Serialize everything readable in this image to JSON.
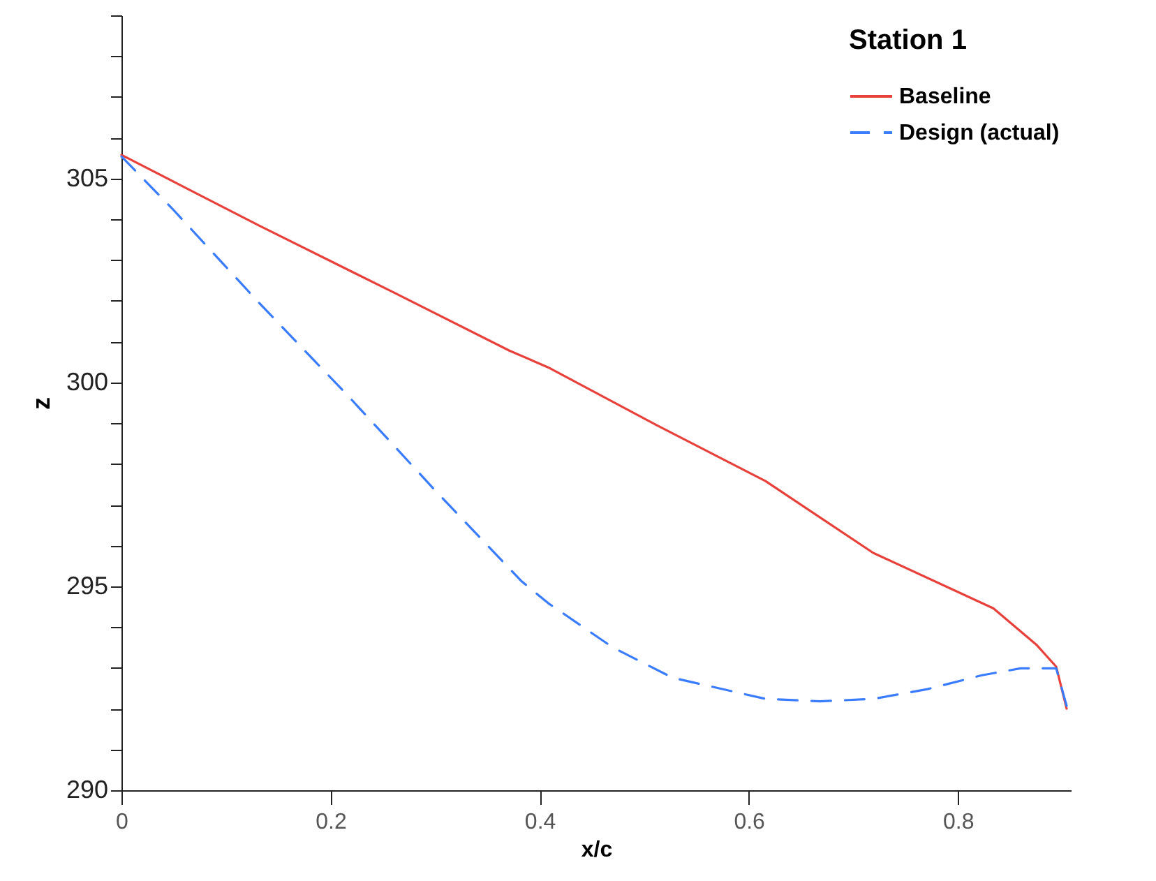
{
  "chart_data": {
    "type": "line",
    "legend_title": "Station 1",
    "xlabel": "x/c",
    "ylabel": "z",
    "xlim": [
      0,
      0.908
    ],
    "xticks": [
      0,
      0.2,
      0.4,
      0.6,
      0.8
    ],
    "ylim": [
      290,
      309
    ],
    "yticks": [
      290,
      {
        "value": 291,
        "label": null
      },
      {
        "value": 292,
        "label": null
      },
      {
        "value": 293,
        "label": null
      },
      {
        "value": 294,
        "label": null
      },
      295,
      {
        "value": 296,
        "label": null
      },
      {
        "value": 297,
        "label": null
      },
      {
        "value": 298,
        "label": null
      },
      {
        "value": 299,
        "label": null
      },
      300,
      {
        "value": 301,
        "label": null
      },
      {
        "value": 302,
        "label": null
      },
      {
        "value": 303,
        "label": null
      },
      {
        "value": 304,
        "label": null
      },
      305,
      {
        "value": 306,
        "label": null
      },
      {
        "value": 307,
        "label": null
      },
      {
        "value": 308,
        "label": null
      },
      {
        "value": 309,
        "label": null
      }
    ],
    "grid": false,
    "legend": "top right",
    "series": [
      {
        "name": "Baseline",
        "color": "#e8403a",
        "line_style": "solid",
        "x": [
          0,
          0.132,
          0.26,
          0.371,
          0.408,
          0.512,
          0.616,
          0.719,
          0.834,
          0.875,
          0.894,
          0.904
        ],
        "values": [
          305.58,
          303.84,
          302.21,
          300.78,
          300.37,
          298.95,
          297.58,
          295.82,
          294.46,
          293.57,
          293.03,
          292.0
        ]
      },
      {
        "name": "Design (actual)",
        "color": "#3a7cff",
        "line_style": "dashed",
        "x": [
          0,
          0.049,
          0.132,
          0.216,
          0.299,
          0.382,
          0.408,
          0.47,
          0.527,
          0.616,
          0.668,
          0.719,
          0.771,
          0.823,
          0.86,
          0.894,
          0.904
        ],
        "values": [
          305.54,
          304.25,
          301.94,
          299.69,
          297.38,
          295.14,
          294.59,
          293.5,
          292.76,
          292.24,
          292.18,
          292.24,
          292.48,
          292.82,
          292.99,
          292.99,
          292.07
        ]
      }
    ]
  }
}
